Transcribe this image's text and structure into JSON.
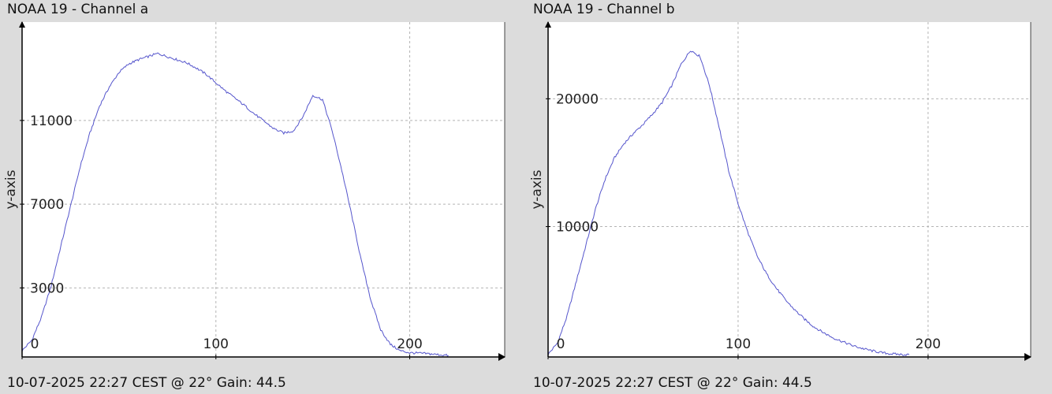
{
  "chart_data": [
    {
      "type": "line",
      "title": "NOAA 19 - Channel a",
      "footer": "10-07-2025 22:27 CEST @ 22° Gain: 44.5",
      "xlabel": "",
      "ylabel": "y-axis",
      "x_ticks": [
        0,
        100,
        200
      ],
      "y_ticks": [
        3000,
        7000,
        11000
      ],
      "xlim": [
        0,
        249
      ],
      "ylim": [
        -300,
        15700
      ],
      "grid": true,
      "color": "#5555cc",
      "series": [
        {
          "x": [
            0,
            5,
            10,
            15,
            20,
            25,
            30,
            35,
            40,
            45,
            50,
            55,
            60,
            65,
            70,
            75,
            80,
            85,
            90,
            95,
            100,
            105,
            110,
            115,
            120,
            125,
            130,
            135,
            140,
            145,
            150,
            155,
            160,
            165,
            170,
            175,
            180,
            185,
            190,
            195,
            200,
            205,
            210,
            215,
            220
          ],
          "y": [
            0,
            500,
            1600,
            3100,
            5000,
            6900,
            8800,
            10400,
            11700,
            12600,
            13300,
            13700,
            13900,
            14050,
            14200,
            14050,
            13900,
            13750,
            13500,
            13200,
            12800,
            12400,
            12050,
            11700,
            11300,
            10950,
            10600,
            10400,
            10500,
            11200,
            12200,
            12000,
            10500,
            8600,
            6500,
            4300,
            2400,
            1000,
            300,
            0,
            -100,
            -120,
            -150,
            -190,
            -230
          ]
        }
      ]
    },
    {
      "type": "line",
      "title": "NOAA 19 - Channel b",
      "footer": "10-07-2025 22:27 CEST @ 22° Gain: 44.5",
      "xlabel": "",
      "ylabel": "y-axis",
      "x_ticks": [
        0,
        100,
        200
      ],
      "y_ticks": [
        10000,
        20000
      ],
      "xlim": [
        0,
        254
      ],
      "ylim": [
        -200,
        26000
      ],
      "grid": true,
      "color": "#5555cc",
      "series": [
        {
          "x": [
            0,
            5,
            10,
            15,
            20,
            25,
            30,
            35,
            40,
            45,
            50,
            55,
            60,
            65,
            70,
            75,
            80,
            85,
            90,
            95,
            100,
            105,
            110,
            115,
            120,
            125,
            130,
            135,
            140,
            145,
            150,
            155,
            160,
            165,
            170,
            175,
            180,
            185,
            190
          ],
          "y": [
            0,
            900,
            3000,
            5800,
            8600,
            11400,
            13700,
            15400,
            16500,
            17300,
            18000,
            18800,
            19700,
            21000,
            22700,
            23800,
            23300,
            21000,
            17800,
            14400,
            11800,
            9600,
            7700,
            6300,
            5200,
            4250,
            3450,
            2750,
            2150,
            1700,
            1300,
            1000,
            700,
            480,
            300,
            150,
            50,
            0,
            -30
          ]
        }
      ]
    }
  ]
}
